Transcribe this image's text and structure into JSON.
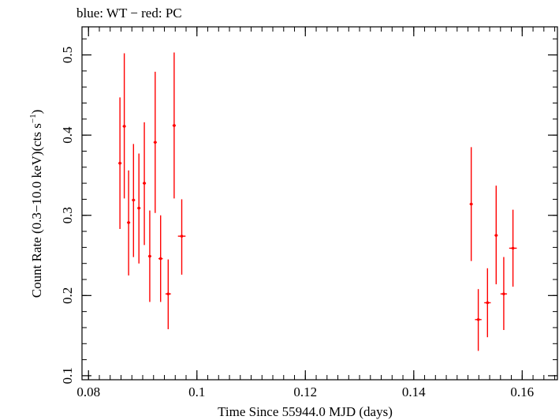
{
  "chart_data": {
    "type": "scatter",
    "title": "blue: WT − red: PC",
    "xlabel": "Time Since 55944.0 MJD (days)",
    "ylabel_main": "Count Rate (0.3−10.0 keV)(cts s",
    "ylabel_sup": "−1",
    "ylabel_end": ")",
    "xlim": [
      0.0788,
      0.1665
    ],
    "ylim": [
      0.095,
      0.535
    ],
    "x_major_ticks": [
      0.08,
      0.1,
      0.12,
      0.14,
      0.16
    ],
    "x_tick_labels": [
      "0.08",
      "0.1",
      "0.12",
      "0.14",
      "0.16"
    ],
    "x_minor_step": 0.002,
    "y_major_ticks": [
      0.1,
      0.2,
      0.3,
      0.4,
      0.5
    ],
    "y_tick_labels": [
      "0.1",
      "0.2",
      "0.3",
      "0.4",
      "0.5"
    ],
    "y_minor_step": 0.02,
    "grid": false,
    "series": [
      {
        "color": "#ff0000",
        "points": [
          {
            "x": 0.0858,
            "y": 0.365,
            "xerr": 0.0003,
            "ylo": 0.283,
            "yhi": 0.447
          },
          {
            "x": 0.0866,
            "y": 0.411,
            "xerr": 0.0003,
            "ylo": 0.321,
            "yhi": 0.502
          },
          {
            "x": 0.0874,
            "y": 0.291,
            "xerr": 0.0003,
            "ylo": 0.225,
            "yhi": 0.356
          },
          {
            "x": 0.0883,
            "y": 0.319,
            "xerr": 0.0003,
            "ylo": 0.248,
            "yhi": 0.389
          },
          {
            "x": 0.0893,
            "y": 0.309,
            "xerr": 0.0003,
            "ylo": 0.24,
            "yhi": 0.377
          },
          {
            "x": 0.0903,
            "y": 0.34,
            "xerr": 0.0003,
            "ylo": 0.263,
            "yhi": 0.416
          },
          {
            "x": 0.0913,
            "y": 0.249,
            "xerr": 0.0003,
            "ylo": 0.192,
            "yhi": 0.306
          },
          {
            "x": 0.0923,
            "y": 0.391,
            "xerr": 0.0003,
            "ylo": 0.303,
            "yhi": 0.479
          },
          {
            "x": 0.0933,
            "y": 0.246,
            "xerr": 0.0004,
            "ylo": 0.192,
            "yhi": 0.3
          },
          {
            "x": 0.0947,
            "y": 0.202,
            "xerr": 0.0005,
            "ylo": 0.158,
            "yhi": 0.245
          },
          {
            "x": 0.0958,
            "y": 0.412,
            "xerr": 0.0003,
            "ylo": 0.321,
            "yhi": 0.503
          },
          {
            "x": 0.0972,
            "y": 0.274,
            "xerr": 0.0007,
            "ylo": 0.226,
            "yhi": 0.32
          },
          {
            "x": 0.1506,
            "y": 0.314,
            "xerr": 0.0003,
            "ylo": 0.243,
            "yhi": 0.385
          },
          {
            "x": 0.1519,
            "y": 0.17,
            "xerr": 0.0006,
            "ylo": 0.131,
            "yhi": 0.208
          },
          {
            "x": 0.1536,
            "y": 0.191,
            "xerr": 0.0006,
            "ylo": 0.148,
            "yhi": 0.234
          },
          {
            "x": 0.1552,
            "y": 0.275,
            "xerr": 0.0003,
            "ylo": 0.214,
            "yhi": 0.337
          },
          {
            "x": 0.1566,
            "y": 0.202,
            "xerr": 0.0006,
            "ylo": 0.157,
            "yhi": 0.248
          },
          {
            "x": 0.1583,
            "y": 0.259,
            "xerr": 0.0007,
            "ylo": 0.211,
            "yhi": 0.307
          }
        ]
      }
    ]
  }
}
